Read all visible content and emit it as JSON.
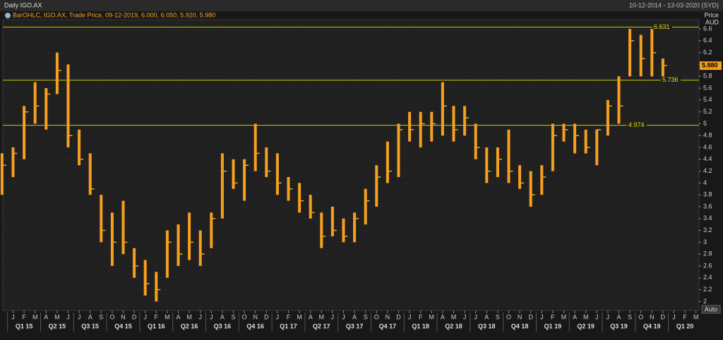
{
  "chart_data": {
    "type": "ohlc",
    "title": "Daily IGO.AX",
    "date_range": "10-12-2014 - 13-03-2020 (SYD)",
    "legend": "BarOHLC, IGO.AX, Trade Price, 09-12-2019, 6.000, 6.050, 5.920, 5.980",
    "y_axis_title": "Price",
    "y_axis_unit": "AUD",
    "scale_button": "Auto",
    "color": "#f5a01f",
    "grid": true,
    "categories": [
      null,
      "J",
      "F",
      "M",
      "A",
      "M",
      "J",
      "J",
      "A",
      "S",
      "O",
      "N",
      "D",
      "J",
      "F",
      "M",
      "A",
      "M",
      "J",
      "J",
      "A",
      "S",
      "O",
      "N",
      "D",
      "J",
      "F",
      "M",
      "A",
      "M",
      "J",
      "J",
      "A",
      "S",
      "O",
      "N",
      "D",
      "J",
      "F",
      "M",
      "A",
      "M",
      "J",
      "J",
      "A",
      "S",
      "O",
      "N",
      "D",
      "J",
      "F",
      "M",
      "A",
      "M",
      "J",
      "J",
      "A",
      "S",
      "O",
      "N",
      "D",
      "J",
      "F",
      "M"
    ],
    "quarters": [
      "Q1 15",
      "Q2 15",
      "Q3 15",
      "Q4 15",
      "Q1 16",
      "Q2 16",
      "Q3 16",
      "Q4 16",
      "Q1 17",
      "Q2 17",
      "Q3 17",
      "Q4 17",
      "Q1 18",
      "Q2 18",
      "Q3 18",
      "Q4 18",
      "Q1 19",
      "Q2 19",
      "Q3 19",
      "Q4 19",
      "Q1 20"
    ],
    "high": [
      4.5,
      4.6,
      5.3,
      5.7,
      5.6,
      6.2,
      6.0,
      4.9,
      4.5,
      3.8,
      3.5,
      3.7,
      2.9,
      2.7,
      2.5,
      3.2,
      3.3,
      3.5,
      3.2,
      3.5,
      4.5,
      4.4,
      4.4,
      5.0,
      4.6,
      4.5,
      4.1,
      4.0,
      3.8,
      3.5,
      3.6,
      3.4,
      3.5,
      3.9,
      4.3,
      4.7,
      5.0,
      5.2,
      5.2,
      5.2,
      5.7,
      5.3,
      5.3,
      5.0,
      4.6,
      4.6,
      4.9,
      4.3,
      4.2,
      4.3,
      5.0,
      5.0,
      5.0,
      4.9,
      4.9,
      5.4,
      5.8,
      6.6,
      6.5,
      6.6,
      6.1,
      null,
      null,
      null
    ],
    "low": [
      3.8,
      4.1,
      4.4,
      5.0,
      4.9,
      5.5,
      4.6,
      4.3,
      3.8,
      3.0,
      2.6,
      2.8,
      2.4,
      2.1,
      2.0,
      2.4,
      2.6,
      2.7,
      2.6,
      2.9,
      3.4,
      3.9,
      3.7,
      4.2,
      4.1,
      3.8,
      3.7,
      3.5,
      3.4,
      2.9,
      3.1,
      3.0,
      3.0,
      3.3,
      3.6,
      4.0,
      4.1,
      4.7,
      4.6,
      4.7,
      4.8,
      4.7,
      4.8,
      4.4,
      4.0,
      4.1,
      4.0,
      3.9,
      3.6,
      3.8,
      4.2,
      4.7,
      4.5,
      4.5,
      4.3,
      4.8,
      5.0,
      5.8,
      5.8,
      5.8,
      5.8,
      null,
      null,
      null
    ],
    "close": [
      4.3,
      4.5,
      5.2,
      5.3,
      5.5,
      5.9,
      4.8,
      4.4,
      3.9,
      3.2,
      3.0,
      3.0,
      2.6,
      2.3,
      2.2,
      3.0,
      2.8,
      3.0,
      2.8,
      3.4,
      4.2,
      4.0,
      4.3,
      4.5,
      4.2,
      4.0,
      3.9,
      3.7,
      3.5,
      3.1,
      3.2,
      3.1,
      3.4,
      3.7,
      4.1,
      4.2,
      4.9,
      4.9,
      5.0,
      5.0,
      5.3,
      4.9,
      5.1,
      4.6,
      4.2,
      4.4,
      4.2,
      4.0,
      3.8,
      4.1,
      4.8,
      4.9,
      4.8,
      4.6,
      4.9,
      5.3,
      5.3,
      6.4,
      6.1,
      6.2,
      5.98,
      null,
      null,
      null
    ],
    "levels": [
      {
        "value": 6.631,
        "label": "6.631"
      },
      {
        "value": 5.736,
        "label": "5.736"
      },
      {
        "value": 4.974,
        "label": "4.974"
      }
    ],
    "last_price": {
      "value": 5.98,
      "label": "5.980"
    },
    "ylim": [
      1.85,
      6.755
    ],
    "yticks": [
      2,
      2.2,
      2.4,
      2.6,
      2.8,
      3,
      3.2,
      3.4,
      3.6,
      3.8,
      4,
      4.2,
      4.4,
      4.6,
      4.8,
      5,
      5.2,
      5.4,
      5.6,
      5.8,
      6,
      6.2,
      6.4,
      6.6
    ]
  }
}
